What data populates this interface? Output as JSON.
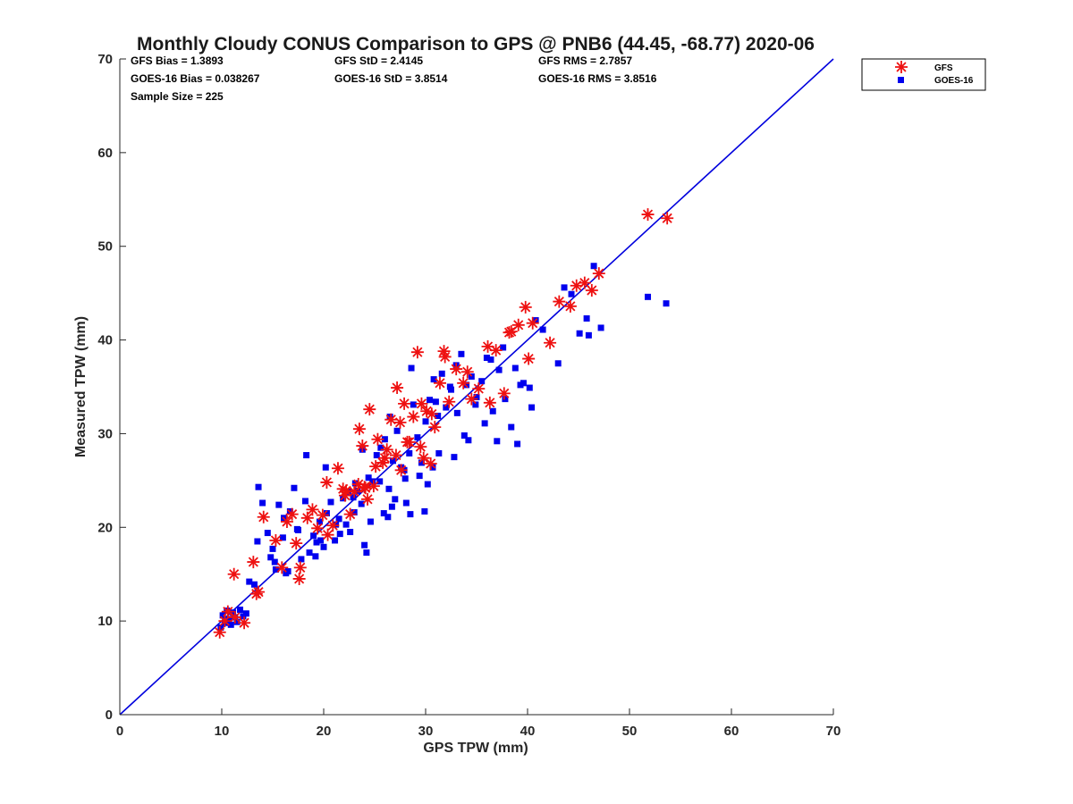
{
  "chart_data": {
    "type": "scatter",
    "title": "Monthly Cloudy CONUS Comparison to GPS @ PNB6 (44.45, -68.77) 2020-06",
    "xlabel": "GPS TPW (mm)",
    "ylabel": "Measured TPW (mm)",
    "xlim": [
      0,
      70
    ],
    "ylim": [
      0,
      70
    ],
    "xticks": [
      "0",
      "10",
      "20",
      "30",
      "40",
      "50",
      "60",
      "70"
    ],
    "yticks": [
      "0",
      "10",
      "20",
      "30",
      "40",
      "50",
      "60",
      "70"
    ],
    "legend_position": "outside-top-right",
    "stats": [
      "GFS Bias = 1.3893",
      "GFS StD = 2.4145",
      "GFS RMS = 2.7857",
      "GOES-16 Bias = 0.038267",
      "GOES-16 StD = 3.8514",
      "GOES-16 RMS = 3.8516",
      "Sample Size = 225"
    ],
    "reference_line": {
      "name": "1:1 line",
      "x": [
        0,
        70
      ],
      "y": [
        0,
        70
      ],
      "color": "#0000dd"
    },
    "series": [
      {
        "name": "GFS",
        "marker": "asterisk",
        "color": "#ee1111",
        "x": [
          9.8,
          10.3,
          10.6,
          11.2,
          12.2,
          13.1,
          13.6,
          14.1,
          15.3,
          15.9,
          16.4,
          16.9,
          17.3,
          17.6,
          18.4,
          18.9,
          19.4,
          19.9,
          20.3,
          20.9,
          21.4,
          21.9,
          22.2,
          22.6,
          23.0,
          23.4,
          23.8,
          24.1,
          24.5,
          24.9,
          25.3,
          25.8,
          26.2,
          26.6,
          27.1,
          27.5,
          27.9,
          28.4,
          28.8,
          29.2,
          29.6,
          30.1,
          30.5,
          30.9,
          31.4,
          31.8,
          32.3,
          33.0,
          33.7,
          34.5,
          35.2,
          36.1,
          36.9,
          37.7,
          38.4,
          39.1,
          39.8,
          40.5,
          42.2,
          43.1,
          44.2,
          44.8,
          45.6,
          46.3,
          47.0,
          51.8,
          53.7,
          23.5,
          24.0,
          27.2,
          29.5,
          31.9,
          11.3,
          13.4,
          17.7,
          20.4,
          22.1,
          26.0,
          28.2,
          30.6,
          34.1,
          36.3,
          38.2,
          40.1,
          25.1,
          27.6,
          29.8,
          24.3
        ],
        "y": [
          8.8,
          10.0,
          11.0,
          15.0,
          9.8,
          16.3,
          13.1,
          21.1,
          18.6,
          15.7,
          20.6,
          21.4,
          18.3,
          14.5,
          21.0,
          21.9,
          19.9,
          21.3,
          24.8,
          20.2,
          26.3,
          24.1,
          23.9,
          21.4,
          23.8,
          24.6,
          28.7,
          24.2,
          32.6,
          24.4,
          29.4,
          26.9,
          28.3,
          31.5,
          27.7,
          31.2,
          33.2,
          29.1,
          31.8,
          38.7,
          33.2,
          32.4,
          26.8,
          30.7,
          35.4,
          38.8,
          33.4,
          36.9,
          35.4,
          33.7,
          34.8,
          39.3,
          38.9,
          34.3,
          40.9,
          41.6,
          43.5,
          41.8,
          39.7,
          44.1,
          43.6,
          45.8,
          46.1,
          45.3,
          47.1,
          53.4,
          53.0,
          30.5,
          24.3,
          34.9,
          28.6,
          38.2,
          10.4,
          12.9,
          15.7,
          19.2,
          23.4,
          27.4,
          29.1,
          32.1,
          36.6,
          33.3,
          40.8,
          38.0,
          26.5,
          26.1,
          27.4,
          23.0
        ]
      },
      {
        "name": "GOES-16",
        "marker": "square",
        "color": "#0000ee",
        "x": [
          9.9,
          10.1,
          10.3,
          10.5,
          10.7,
          10.9,
          11.1,
          11.3,
          11.5,
          11.8,
          12.1,
          12.4,
          13.2,
          13.6,
          14.0,
          14.5,
          15.0,
          15.3,
          15.6,
          16.0,
          16.3,
          16.7,
          17.1,
          17.4,
          17.8,
          18.2,
          18.6,
          19.0,
          19.3,
          19.6,
          20.0,
          20.3,
          20.7,
          21.1,
          21.5,
          21.9,
          22.2,
          22.6,
          23.0,
          23.3,
          23.7,
          24.0,
          24.4,
          24.8,
          25.2,
          25.6,
          26.0,
          26.4,
          26.8,
          27.2,
          27.6,
          28.0,
          28.4,
          28.8,
          29.2,
          29.6,
          30.0,
          30.4,
          30.8,
          31.2,
          31.6,
          32.0,
          32.5,
          33.0,
          33.5,
          34.0,
          34.5,
          35.0,
          35.5,
          36.0,
          36.6,
          37.2,
          37.8,
          38.4,
          39.0,
          39.6,
          40.2,
          40.8,
          41.5,
          43.0,
          43.6,
          44.3,
          45.1,
          45.8,
          46.5,
          47.2,
          51.8,
          53.6,
          18.3,
          20.2,
          23.8,
          25.5,
          27.9,
          29.4,
          31.3,
          33.1,
          35.8,
          38.8,
          40.4,
          46.0,
          13.5,
          16.5,
          19.2,
          21.6,
          24.2,
          26.7,
          28.5,
          30.2,
          32.4,
          34.9,
          37.0,
          39.3,
          12.7,
          15.2,
          17.5,
          22.9,
          26.3,
          29.9,
          32.8,
          36.4,
          24.6,
          27.0,
          30.7,
          34.2,
          28.1,
          22.4,
          19.7,
          16.1,
          14.8,
          21.2,
          25.9,
          28.6,
          31.0,
          33.8,
          37.6,
          23.1,
          26.5
        ],
        "y": [
          9.3,
          10.6,
          9.8,
          11.1,
          10.2,
          9.6,
          10.9,
          10.4,
          9.9,
          11.2,
          10.5,
          10.8,
          13.9,
          24.3,
          22.6,
          19.4,
          17.7,
          15.5,
          22.4,
          18.9,
          15.1,
          21.7,
          24.2,
          19.8,
          16.6,
          22.8,
          17.3,
          19.1,
          18.4,
          20.6,
          17.9,
          21.5,
          22.7,
          18.6,
          20.9,
          23.1,
          20.3,
          19.5,
          21.6,
          23.9,
          22.5,
          18.1,
          25.3,
          24.9,
          27.7,
          28.5,
          29.4,
          24.1,
          27.1,
          30.3,
          26.4,
          25.2,
          27.9,
          33.1,
          29.6,
          26.9,
          31.3,
          33.6,
          35.8,
          31.9,
          36.4,
          32.8,
          34.7,
          37.3,
          38.5,
          35.2,
          36.1,
          33.9,
          35.6,
          38.1,
          32.4,
          36.8,
          33.7,
          30.7,
          28.9,
          35.4,
          34.9,
          42.1,
          41.1,
          37.5,
          45.6,
          44.9,
          40.7,
          42.3,
          47.9,
          41.3,
          44.6,
          43.9,
          27.7,
          26.4,
          28.3,
          24.9,
          26.1,
          25.5,
          27.9,
          32.2,
          31.1,
          37.0,
          32.8,
          40.5,
          18.5,
          15.3,
          16.9,
          19.3,
          17.3,
          22.2,
          21.4,
          24.6,
          35.0,
          33.1,
          29.2,
          35.2,
          14.2,
          16.3,
          19.7,
          23.2,
          21.1,
          21.7,
          27.5,
          37.9,
          20.6,
          23.0,
          26.4,
          29.3,
          22.6,
          23.8,
          18.6,
          21.0,
          16.8,
          20.3,
          21.5,
          37.0,
          33.4,
          29.8,
          39.2,
          24.7,
          31.8
        ]
      }
    ]
  }
}
